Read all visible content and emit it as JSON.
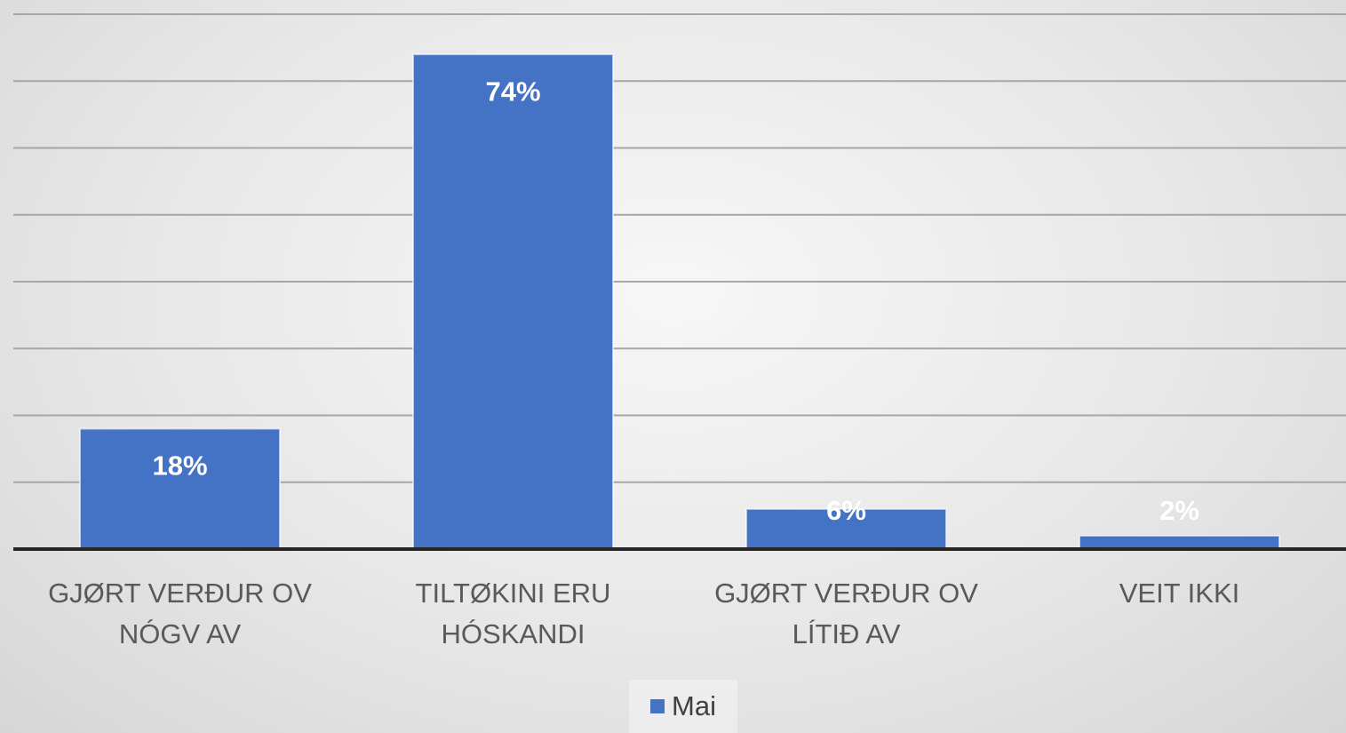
{
  "chart_data": {
    "type": "bar",
    "categories": [
      "GJØRT VERÐUR OV NÓGV AV",
      "TILTØKINI ERU HÓSKANDI",
      "GJØRT VERÐUR OV LÍTIÐ AV",
      "VEIT IKKI"
    ],
    "series": [
      {
        "name": "Mai",
        "color": "#4472c4",
        "values": [
          18,
          74,
          6,
          2
        ],
        "value_labels": [
          "18%",
          "74%",
          "6%",
          "2%"
        ]
      }
    ],
    "ylim": [
      0,
      80
    ],
    "yticks": [
      0,
      10,
      20,
      30,
      40,
      50,
      60,
      70,
      80
    ],
    "grid": true,
    "legend": "bottom"
  }
}
